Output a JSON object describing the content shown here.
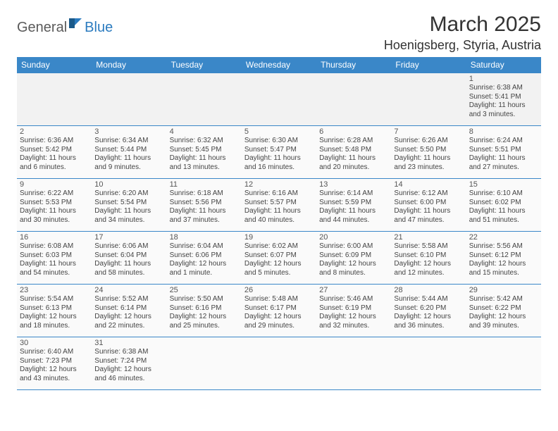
{
  "logo": {
    "part1": "General",
    "part2": "Blue"
  },
  "title": "March 2025",
  "location": "Hoenigsberg, Styria, Austria",
  "colors": {
    "header_bg": "#3a87c8",
    "header_text": "#ffffff",
    "border": "#3a87c8",
    "cell_bg": "#fafafa",
    "logo_gray": "#5a5a5a",
    "logo_blue": "#2b7bbf"
  },
  "weekdays": [
    "Sunday",
    "Monday",
    "Tuesday",
    "Wednesday",
    "Thursday",
    "Friday",
    "Saturday"
  ],
  "days": {
    "1": {
      "sunrise": "6:38 AM",
      "sunset": "5:41 PM",
      "dl_h": 11,
      "dl_m": 3
    },
    "2": {
      "sunrise": "6:36 AM",
      "sunset": "5:42 PM",
      "dl_h": 11,
      "dl_m": 6
    },
    "3": {
      "sunrise": "6:34 AM",
      "sunset": "5:44 PM",
      "dl_h": 11,
      "dl_m": 9
    },
    "4": {
      "sunrise": "6:32 AM",
      "sunset": "5:45 PM",
      "dl_h": 11,
      "dl_m": 13
    },
    "5": {
      "sunrise": "6:30 AM",
      "sunset": "5:47 PM",
      "dl_h": 11,
      "dl_m": 16
    },
    "6": {
      "sunrise": "6:28 AM",
      "sunset": "5:48 PM",
      "dl_h": 11,
      "dl_m": 20
    },
    "7": {
      "sunrise": "6:26 AM",
      "sunset": "5:50 PM",
      "dl_h": 11,
      "dl_m": 23
    },
    "8": {
      "sunrise": "6:24 AM",
      "sunset": "5:51 PM",
      "dl_h": 11,
      "dl_m": 27
    },
    "9": {
      "sunrise": "6:22 AM",
      "sunset": "5:53 PM",
      "dl_h": 11,
      "dl_m": 30
    },
    "10": {
      "sunrise": "6:20 AM",
      "sunset": "5:54 PM",
      "dl_h": 11,
      "dl_m": 34
    },
    "11": {
      "sunrise": "6:18 AM",
      "sunset": "5:56 PM",
      "dl_h": 11,
      "dl_m": 37
    },
    "12": {
      "sunrise": "6:16 AM",
      "sunset": "5:57 PM",
      "dl_h": 11,
      "dl_m": 40
    },
    "13": {
      "sunrise": "6:14 AM",
      "sunset": "5:59 PM",
      "dl_h": 11,
      "dl_m": 44
    },
    "14": {
      "sunrise": "6:12 AM",
      "sunset": "6:00 PM",
      "dl_h": 11,
      "dl_m": 47
    },
    "15": {
      "sunrise": "6:10 AM",
      "sunset": "6:02 PM",
      "dl_h": 11,
      "dl_m": 51
    },
    "16": {
      "sunrise": "6:08 AM",
      "sunset": "6:03 PM",
      "dl_h": 11,
      "dl_m": 54
    },
    "17": {
      "sunrise": "6:06 AM",
      "sunset": "6:04 PM",
      "dl_h": 11,
      "dl_m": 58
    },
    "18": {
      "sunrise": "6:04 AM",
      "sunset": "6:06 PM",
      "dl_h": 12,
      "dl_m": 1
    },
    "19": {
      "sunrise": "6:02 AM",
      "sunset": "6:07 PM",
      "dl_h": 12,
      "dl_m": 5
    },
    "20": {
      "sunrise": "6:00 AM",
      "sunset": "6:09 PM",
      "dl_h": 12,
      "dl_m": 8
    },
    "21": {
      "sunrise": "5:58 AM",
      "sunset": "6:10 PM",
      "dl_h": 12,
      "dl_m": 12
    },
    "22": {
      "sunrise": "5:56 AM",
      "sunset": "6:12 PM",
      "dl_h": 12,
      "dl_m": 15
    },
    "23": {
      "sunrise": "5:54 AM",
      "sunset": "6:13 PM",
      "dl_h": 12,
      "dl_m": 18
    },
    "24": {
      "sunrise": "5:52 AM",
      "sunset": "6:14 PM",
      "dl_h": 12,
      "dl_m": 22
    },
    "25": {
      "sunrise": "5:50 AM",
      "sunset": "6:16 PM",
      "dl_h": 12,
      "dl_m": 25
    },
    "26": {
      "sunrise": "5:48 AM",
      "sunset": "6:17 PM",
      "dl_h": 12,
      "dl_m": 29
    },
    "27": {
      "sunrise": "5:46 AM",
      "sunset": "6:19 PM",
      "dl_h": 12,
      "dl_m": 32
    },
    "28": {
      "sunrise": "5:44 AM",
      "sunset": "6:20 PM",
      "dl_h": 12,
      "dl_m": 36
    },
    "29": {
      "sunrise": "5:42 AM",
      "sunset": "6:22 PM",
      "dl_h": 12,
      "dl_m": 39
    },
    "30": {
      "sunrise": "6:40 AM",
      "sunset": "7:23 PM",
      "dl_h": 12,
      "dl_m": 43
    },
    "31": {
      "sunrise": "6:38 AM",
      "sunset": "7:24 PM",
      "dl_h": 12,
      "dl_m": 46
    }
  },
  "layout": {
    "first_weekday_index": 6,
    "num_days": 31,
    "num_cols": 7
  },
  "labels": {
    "sunrise": "Sunrise:",
    "sunset": "Sunset:",
    "daylight": "Daylight:",
    "hours": "hours",
    "and": "and",
    "minute": "minute.",
    "minutes": "minutes."
  }
}
